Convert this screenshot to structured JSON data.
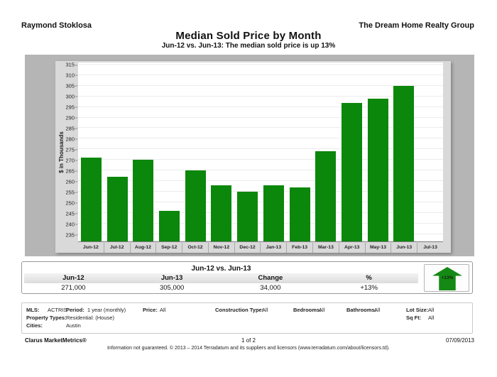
{
  "header": {
    "agent": "Raymond Stoklosa",
    "company": "The Dream Home Realty Group",
    "title": "Median Sold Price by Month",
    "subtitle": "Jun-12 vs. Jun-13:  The median sold price is up 13%"
  },
  "chart_data": {
    "type": "bar",
    "title": "Median Sold Price by Month",
    "xlabel": "",
    "ylabel": "$ in Thousands",
    "categories": [
      "Jun-12",
      "Jul-12",
      "Aug-12",
      "Sep-12",
      "Oct-12",
      "Nov-12",
      "Dec-12",
      "Jan-13",
      "Feb-13",
      "Mar-13",
      "Apr-13",
      "May-13",
      "Jun-13",
      "Jul-13"
    ],
    "values": [
      271,
      262,
      270,
      246,
      265,
      258,
      255,
      258,
      257,
      274,
      297,
      299,
      305,
      null
    ],
    "ylim": [
      231.5,
      316
    ],
    "yticks": [
      235,
      240,
      245,
      250,
      255,
      260,
      265,
      270,
      275,
      280,
      285,
      290,
      295,
      300,
      305,
      310,
      315
    ],
    "bar_color": "#0b870b",
    "grid": true,
    "legend": false,
    "plot_bg": "#ffffff",
    "frame_bg": "#d9d9d9",
    "panel_bg": "#b5b5b5"
  },
  "summary_table": {
    "title": "Jun-12 vs. Jun-13",
    "columns": [
      "Jun-12",
      "Jun-13",
      "Change",
      "%"
    ],
    "values": [
      "271,000",
      "305,000",
      "34,000",
      "+13%"
    ],
    "badge_label": "+13%",
    "badge_color": "#158915"
  },
  "criteria": {
    "mls_label": "MLS:",
    "mls": "ACTRIS",
    "period_label": "Period:",
    "period": "1 year (monthly)",
    "price_label": "Price:",
    "price": "All",
    "construction_label": "Construction Type:",
    "construction": "All",
    "bedrooms_label": "Bedrooms:",
    "bedrooms": "All",
    "bathrooms_label": "Bathrooms:",
    "bathrooms": "All",
    "lot_label": "Lot Size:",
    "lot": "All",
    "property_label": "Property Types:",
    "property": "Residential: (House)",
    "sqft_label": "Sq Ft:",
    "sqft": "All",
    "cities_label": "Cities:",
    "cities": "Austin"
  },
  "footer": {
    "brand": "Clarus MarketMetrics®",
    "page": "1 of 2",
    "date": "07/09/2013",
    "disclaimer": "Information not guaranteed.  © 2013 – 2014 Terradatum and its suppliers and licensors (www.terradatum.com/about/licensors.td)."
  }
}
